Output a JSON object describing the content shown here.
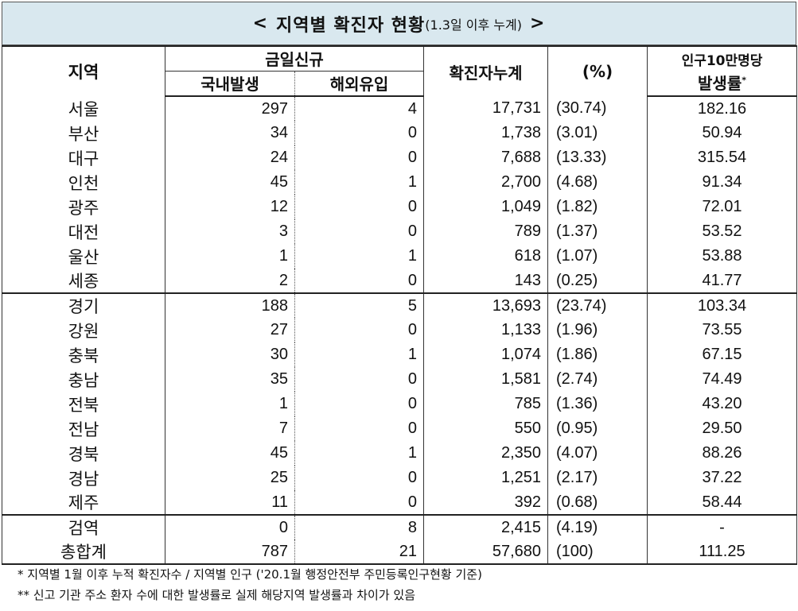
{
  "title": {
    "prefix": "<",
    "main": "지역별 확진자 현황",
    "sub": "(1.3일 이후 누계)",
    "suffix": ">"
  },
  "headers": {
    "region": "지역",
    "today_new": "금일신규",
    "domestic": "국내발생",
    "overseas": "해외유입",
    "cumulative": "확진자누계",
    "percent": "(%)",
    "rate_line1": "인구10만명당",
    "rate_line2": "발생률",
    "rate_mark": "*"
  },
  "rows": [
    {
      "region": "서울",
      "domestic": "297",
      "overseas": "4",
      "cumulative": "17,731",
      "percent": "(30.74)",
      "rate": "182.16"
    },
    {
      "region": "부산",
      "domestic": "34",
      "overseas": "0",
      "cumulative": "1,738",
      "percent": "(3.01)",
      "rate": "50.94"
    },
    {
      "region": "대구",
      "domestic": "24",
      "overseas": "0",
      "cumulative": "7,688",
      "percent": "(13.33)",
      "rate": "315.54"
    },
    {
      "region": "인천",
      "domestic": "45",
      "overseas": "1",
      "cumulative": "2,700",
      "percent": "(4.68)",
      "rate": "91.34"
    },
    {
      "region": "광주",
      "domestic": "12",
      "overseas": "0",
      "cumulative": "1,049",
      "percent": "(1.82)",
      "rate": "72.01"
    },
    {
      "region": "대전",
      "domestic": "3",
      "overseas": "0",
      "cumulative": "789",
      "percent": "(1.37)",
      "rate": "53.52"
    },
    {
      "region": "울산",
      "domestic": "1",
      "overseas": "1",
      "cumulative": "618",
      "percent": "(1.07)",
      "rate": "53.88"
    },
    {
      "region": "세종",
      "domestic": "2",
      "overseas": "0",
      "cumulative": "143",
      "percent": "(0.25)",
      "rate": "41.77"
    },
    {
      "region": "경기",
      "domestic": "188",
      "overseas": "5",
      "cumulative": "13,693",
      "percent": "(23.74)",
      "rate": "103.34"
    },
    {
      "region": "강원",
      "domestic": "27",
      "overseas": "0",
      "cumulative": "1,133",
      "percent": "(1.96)",
      "rate": "73.55"
    },
    {
      "region": "충북",
      "domestic": "30",
      "overseas": "1",
      "cumulative": "1,074",
      "percent": "(1.86)",
      "rate": "67.15"
    },
    {
      "region": "충남",
      "domestic": "35",
      "overseas": "0",
      "cumulative": "1,581",
      "percent": "(2.74)",
      "rate": "74.49"
    },
    {
      "region": "전북",
      "domestic": "1",
      "overseas": "0",
      "cumulative": "785",
      "percent": "(1.36)",
      "rate": "43.20"
    },
    {
      "region": "전남",
      "domestic": "7",
      "overseas": "0",
      "cumulative": "550",
      "percent": "(0.95)",
      "rate": "29.50"
    },
    {
      "region": "경북",
      "domestic": "45",
      "overseas": "1",
      "cumulative": "2,350",
      "percent": "(4.07)",
      "rate": "88.26"
    },
    {
      "region": "경남",
      "domestic": "25",
      "overseas": "0",
      "cumulative": "1,251",
      "percent": "(2.17)",
      "rate": "37.22"
    },
    {
      "region": "제주",
      "domestic": "11",
      "overseas": "0",
      "cumulative": "392",
      "percent": "(0.68)",
      "rate": "58.44"
    },
    {
      "region": "검역",
      "domestic": "0",
      "overseas": "8",
      "cumulative": "2,415",
      "percent": "(4.19)",
      "rate": "-"
    },
    {
      "region": "총합계",
      "domestic": "787",
      "overseas": "21",
      "cumulative": "57,680",
      "percent": "(100)",
      "rate": "111.25"
    }
  ],
  "notes": [
    "* 지역별 1월 이후 누적 확진자수 / 지역별 인구 ('20.1월 행정안전부 주민등록인구현황 기준)",
    "** 신고 기관 주소 환자 수에 대한 발생률로 실제 해당지역 발생률과 차이가 있음"
  ],
  "colors": {
    "title_bg": "#d9e8ef",
    "border": "#222222"
  }
}
